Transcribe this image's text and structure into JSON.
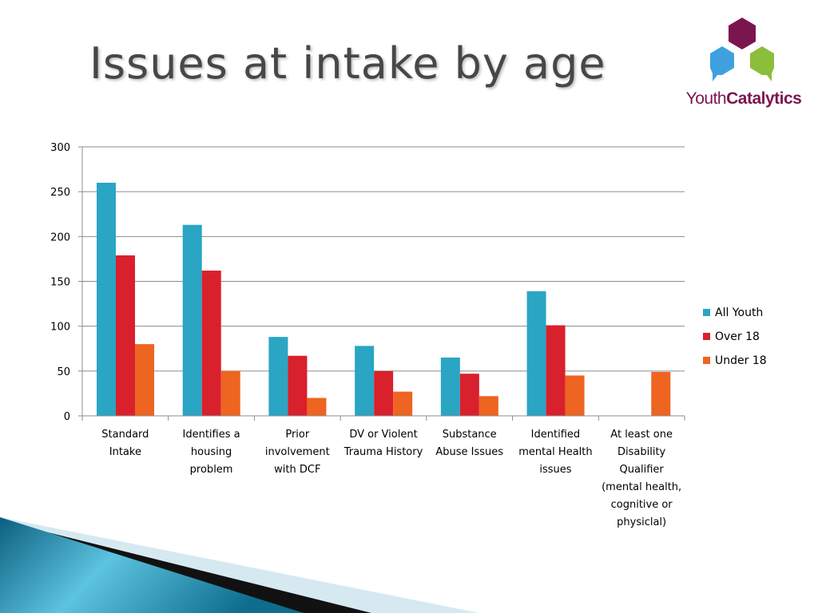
{
  "slide": {
    "title": "Issues at intake by age"
  },
  "logo": {
    "text_light": "Youth",
    "text_bold": "Catalytics",
    "colors": {
      "top": "#7b1550",
      "left": "#3fa0e0",
      "right": "#8bbe3a"
    }
  },
  "chart_data": {
    "type": "bar",
    "categories": [
      [
        "Standard",
        "Intake"
      ],
      [
        "Identifies a",
        "housing",
        "problem"
      ],
      [
        "Prior",
        "involvement",
        "with DCF"
      ],
      [
        "DV or Violent",
        "Trauma History"
      ],
      [
        "Substance",
        "Abuse Issues"
      ],
      [
        "Identified",
        "mental Health",
        "issues"
      ],
      [
        "At least one",
        "Disability",
        "Qualifier",
        "(mental health,",
        "cognitive or",
        "physiclal)"
      ]
    ],
    "series": [
      {
        "name": "All Youth",
        "color": "#2aa5c4",
        "values": [
          260,
          213,
          88,
          78,
          65,
          139,
          0
        ]
      },
      {
        "name": "Over 18",
        "color": "#d9202d",
        "values": [
          179,
          162,
          67,
          50,
          47,
          101,
          0
        ]
      },
      {
        "name": "Under 18",
        "color": "#ee6421",
        "values": [
          80,
          50,
          20,
          27,
          22,
          45,
          49
        ]
      }
    ],
    "ylim": [
      0,
      300
    ],
    "yticks": [
      "0",
      "50",
      "100",
      "150",
      "200",
      "250",
      "300"
    ],
    "grid": true,
    "legend": "right"
  }
}
